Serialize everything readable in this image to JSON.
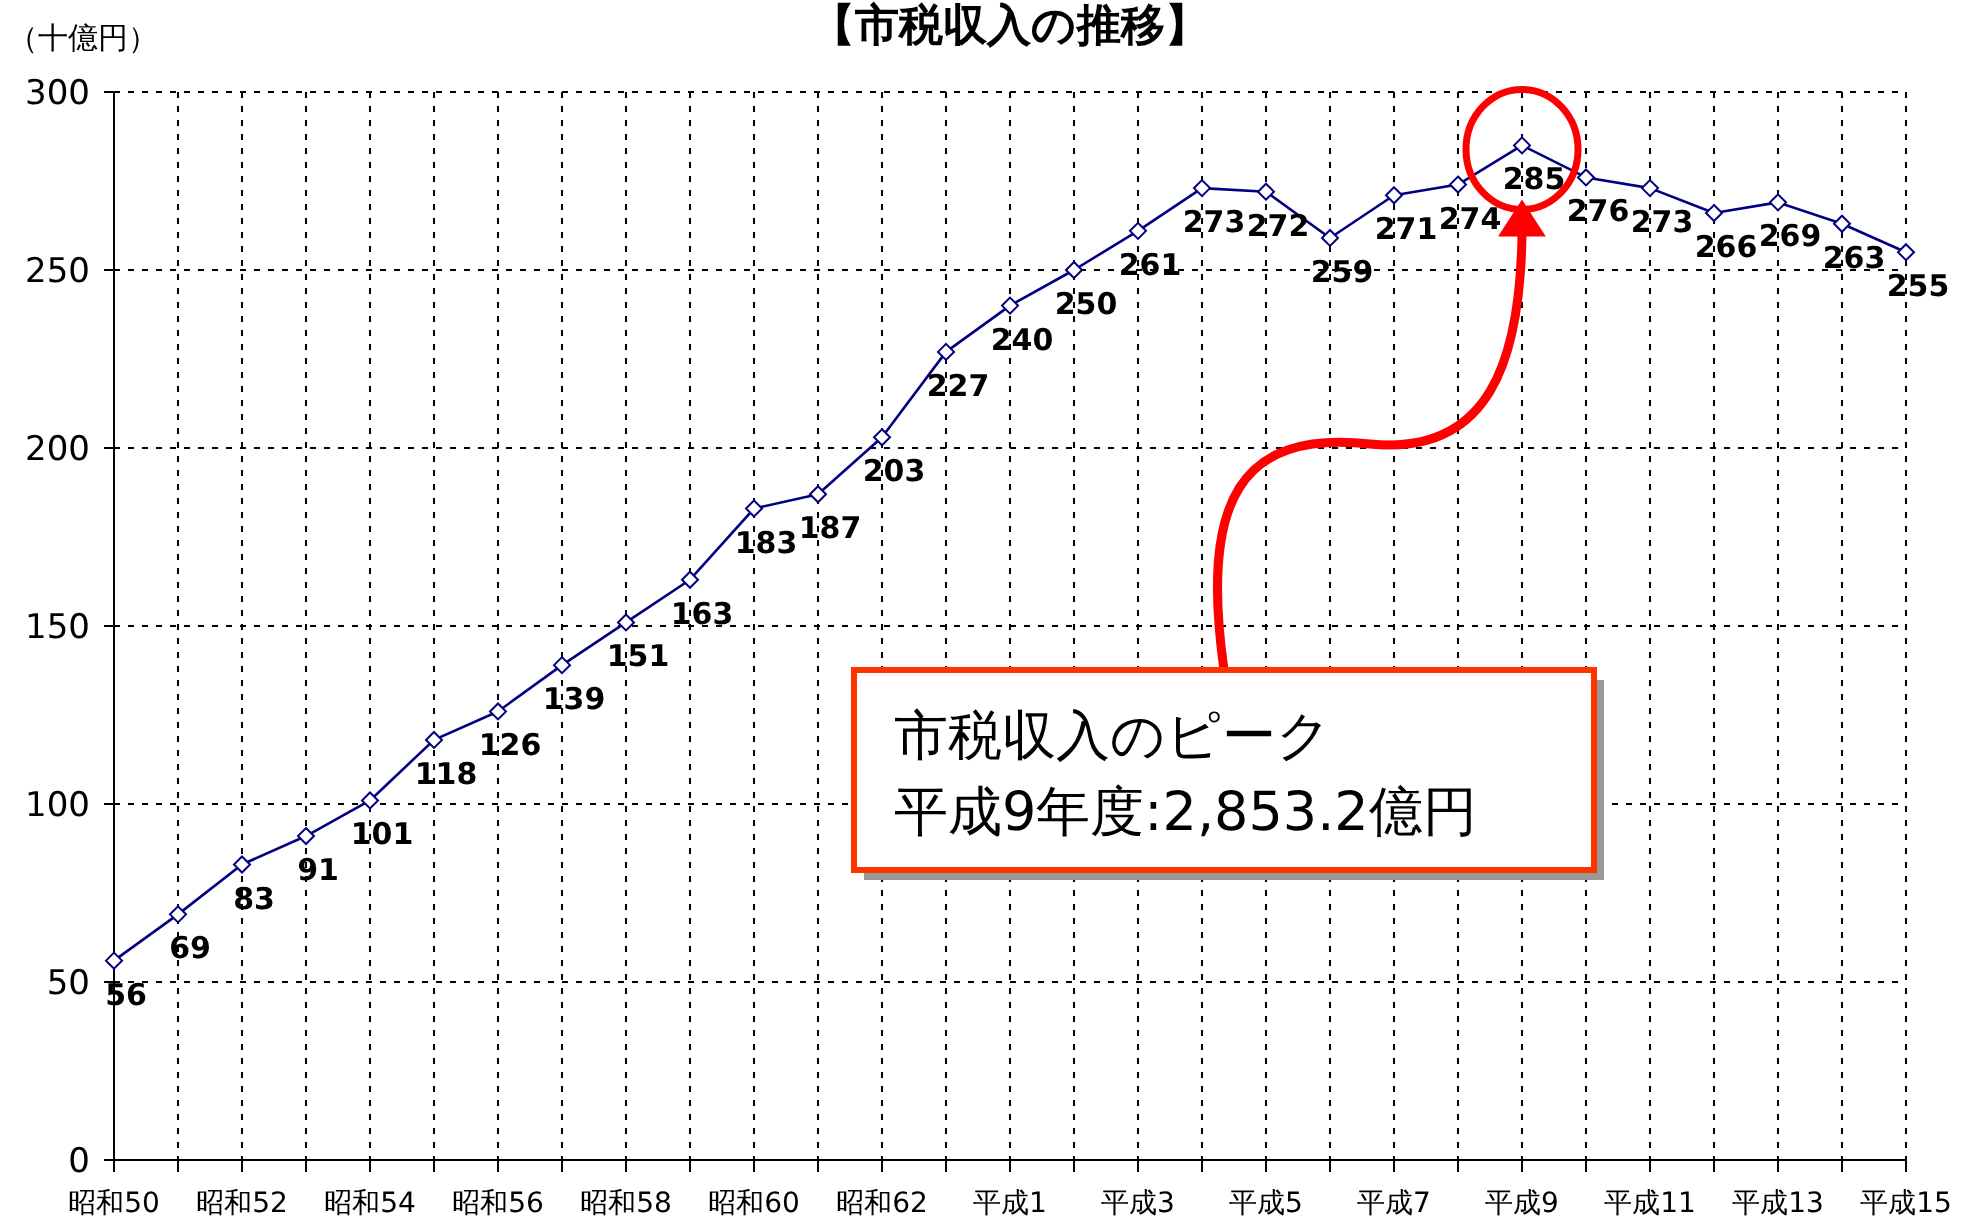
{
  "chart_data": {
    "type": "line",
    "title": "【市税収入の推移】",
    "ylabel": "（十億円）",
    "categories": [
      "昭和50",
      null,
      "昭和52",
      null,
      "昭和54",
      null,
      "昭和56",
      null,
      "昭和58",
      null,
      "昭和60",
      null,
      "昭和62",
      null,
      "平成1",
      null,
      "平成3",
      null,
      "平成5",
      null,
      "平成7",
      null,
      "平成9",
      null,
      "平成11",
      null,
      "平成13",
      null,
      "平成15"
    ],
    "series": [
      {
        "color": "#000080",
        "values": [
          56,
          69,
          83,
          91,
          101,
          118,
          126,
          139,
          151,
          163,
          183,
          187,
          203,
          227,
          240,
          250,
          261,
          273,
          272,
          259,
          271,
          274,
          285,
          276,
          273,
          266,
          269,
          263,
          255
        ]
      }
    ],
    "ylim": [
      0,
      300
    ],
    "yticks": [
      0,
      50,
      100,
      150,
      200,
      250,
      300
    ],
    "grid": true,
    "marker": "diamond",
    "line_style": "solid",
    "data_labels": true,
    "annotations": [
      "市税収入のピーク",
      "平成9年度:2,853.2億円"
    ]
  }
}
